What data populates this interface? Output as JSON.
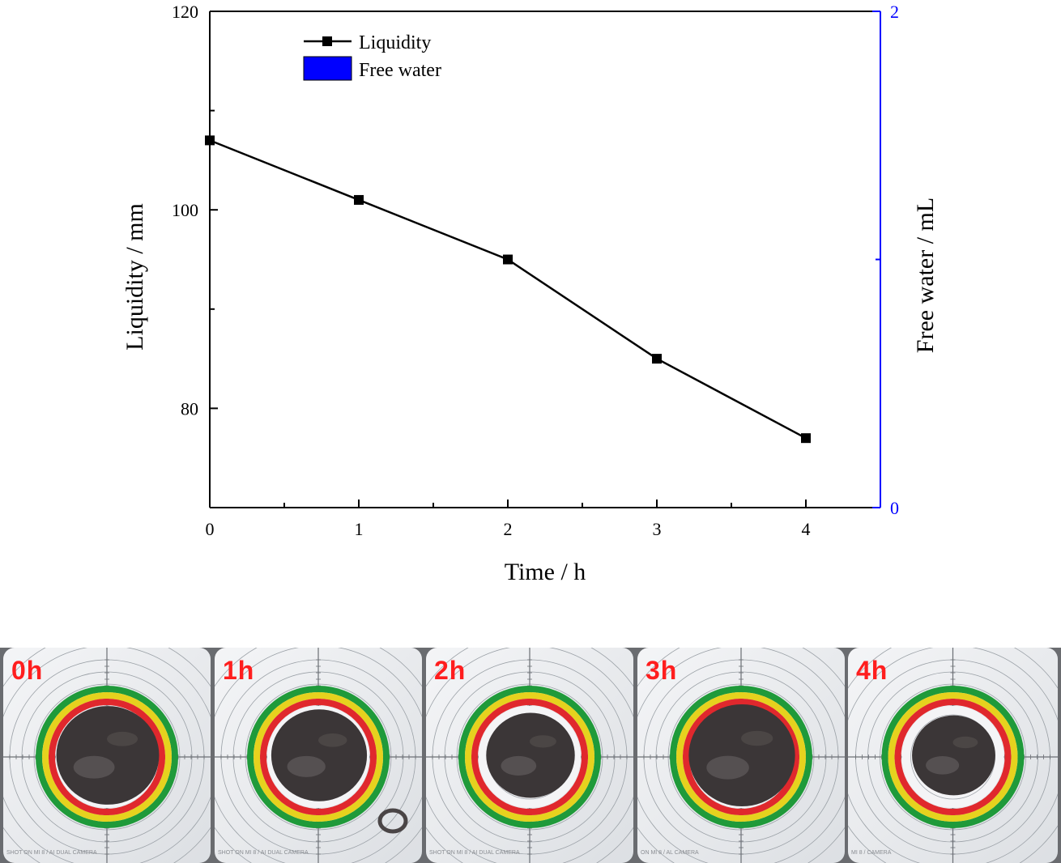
{
  "chart_data": {
    "type": "line",
    "x": [
      0,
      1,
      2,
      3,
      4
    ],
    "xlabel": "Time / h",
    "xlim": [
      0,
      4.5
    ],
    "xticks": [
      "0",
      "1",
      "2",
      "3",
      "4"
    ],
    "series": [
      {
        "name": "Liquidity",
        "axis": "left",
        "values": [
          107,
          101,
          95,
          85,
          77
        ],
        "color": "#000000",
        "marker": "square"
      }
    ],
    "legend": [
      {
        "name": "Liquidity",
        "kind": "line-marker",
        "color": "#000000"
      },
      {
        "name": "Free water",
        "kind": "bar",
        "color": "#0000ff"
      }
    ],
    "legend_position": "top-left",
    "y_left": {
      "label": "Liquidity / mm",
      "lim": [
        70,
        120
      ],
      "ticks": [
        "120",
        "100",
        "80"
      ]
    },
    "y_right": {
      "label": "Free water / mL",
      "lim": [
        0,
        2
      ],
      "ticks": [
        "2",
        "0"
      ],
      "color": "#0000ff"
    },
    "grid": false
  },
  "photos": [
    {
      "label": "0h",
      "note": "SHOT ON MI 8 / AI DUAL CAMERA",
      "diameter_fraction": 0.58,
      "residue": false
    },
    {
      "label": "1h",
      "note": "SHOT ON MI 8 / AI DUAL CAMERA",
      "diameter_fraction": 0.54,
      "residue": true
    },
    {
      "label": "2h",
      "note": "SHOT ON MI 8 / AI DUAL CAMERA",
      "diameter_fraction": 0.5,
      "residue": false
    },
    {
      "label": "3h",
      "note": "ON MI 8 / AL CAMERA",
      "diameter_fraction": 0.6,
      "residue": false
    },
    {
      "label": "4h",
      "note": "MI 8 / CAMERA",
      "diameter_fraction": 0.47,
      "residue": false
    }
  ]
}
